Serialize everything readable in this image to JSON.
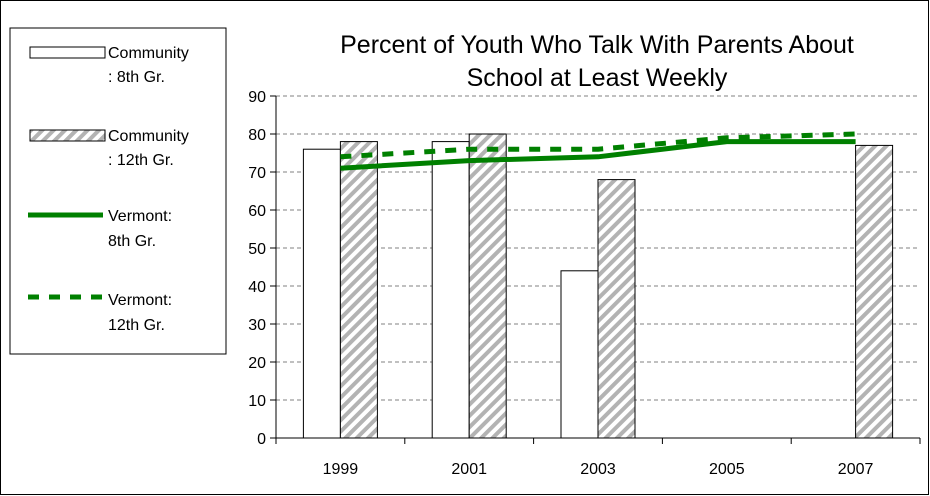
{
  "chart_data": {
    "type": "bar",
    "title_lines": [
      "Percent of Youth Who Talk With Parents About",
      "School at Least Weekly"
    ],
    "categories": [
      "1999",
      "2001",
      "2003",
      "2005",
      "2007"
    ],
    "ylim": [
      0,
      90
    ],
    "yticks": [
      "0",
      "10",
      "20",
      "30",
      "40",
      "50",
      "60",
      "70",
      "80",
      "90"
    ],
    "grid": true,
    "legend_position": "left",
    "bar_series": [
      {
        "name_lines": [
          "Community",
          ": 8th Gr."
        ],
        "style": "white",
        "values": [
          76,
          78,
          44,
          null,
          null
        ]
      },
      {
        "name_lines": [
          "Community",
          ": 12th Gr."
        ],
        "style": "hatched",
        "values": [
          78,
          80,
          68,
          null,
          77
        ]
      }
    ],
    "line_series": [
      {
        "name_lines": [
          "Vermont:",
          "8th Gr."
        ],
        "style": "solid",
        "color": "#008000",
        "values": [
          71,
          73,
          74,
          78,
          78
        ]
      },
      {
        "name_lines": [
          "Vermont:",
          "12th Gr."
        ],
        "style": "dashed",
        "color": "#008000",
        "values": [
          74,
          76,
          76,
          79,
          80
        ]
      }
    ]
  }
}
